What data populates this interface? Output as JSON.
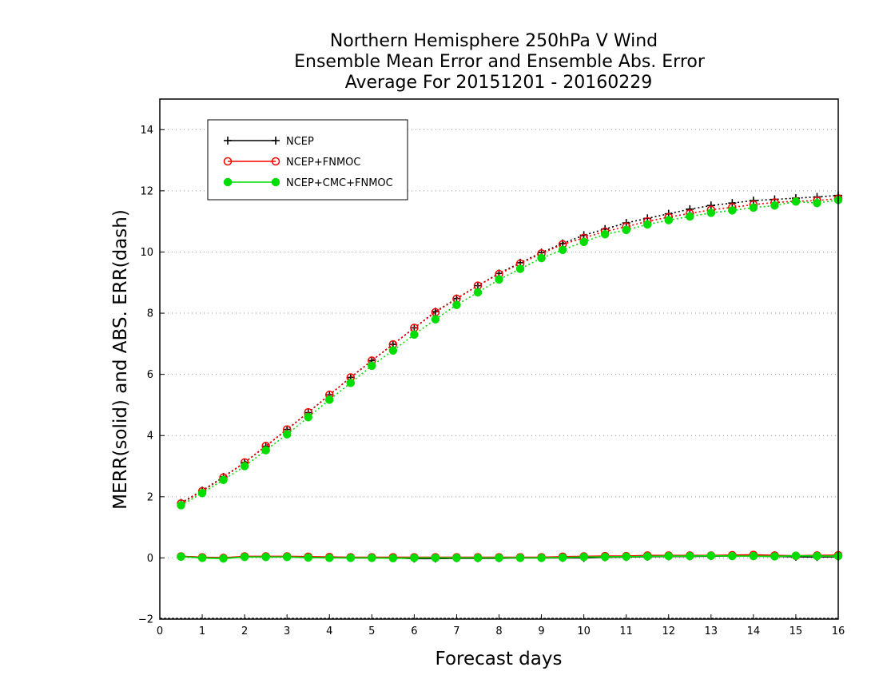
{
  "chart_data": {
    "type": "line",
    "title_lines": [
      "Northern Hemisphere 250hPa V Wind",
      "Ensemble Mean Error and Ensemble Abs. Error",
      "Average For 20151201 - 20160229"
    ],
    "xlabel": "Forecast days",
    "ylabel": "MERR(solid) and ABS. ERR(dash)",
    "xlim": [
      0,
      16
    ],
    "ylim": [
      -2,
      15
    ],
    "xticks": [
      "0",
      "1",
      "2",
      "3",
      "4",
      "5",
      "6",
      "7",
      "8",
      "9",
      "10",
      "11",
      "12",
      "13",
      "14",
      "15",
      "16"
    ],
    "yticks": [
      "−2",
      "0",
      "2",
      "4",
      "6",
      "8",
      "10",
      "12",
      "14"
    ],
    "ytick_values": [
      -2,
      0,
      2,
      4,
      6,
      8,
      10,
      12,
      14
    ],
    "grid": "horizontal dotted",
    "legend_position": "top-left",
    "x": [
      0.5,
      1,
      1.5,
      2,
      2.5,
      3,
      3.5,
      4,
      4.5,
      5,
      5.5,
      6,
      6.5,
      7,
      7.5,
      8,
      8.5,
      9,
      9.5,
      10,
      10.5,
      11,
      11.5,
      12,
      12.5,
      13,
      13.5,
      14,
      14.5,
      15,
      15.5,
      16
    ],
    "series": [
      {
        "name": "NCEP",
        "color": "#000000",
        "marker": "plus",
        "merr": [
          0.05,
          0.02,
          0.0,
          0.04,
          0.03,
          0.04,
          0.03,
          0.01,
          0.0,
          0.0,
          0.0,
          -0.02,
          -0.02,
          -0.01,
          -0.01,
          -0.01,
          0.0,
          0.0,
          0.0,
          0.0,
          0.02,
          0.03,
          0.04,
          0.05,
          0.05,
          0.06,
          0.06,
          0.06,
          0.05,
          0.04,
          0.03,
          0.04
        ],
        "abs_err": [
          1.8,
          2.2,
          2.65,
          3.12,
          3.65,
          4.2,
          4.75,
          5.33,
          5.9,
          6.45,
          6.98,
          7.52,
          8.05,
          8.48,
          8.9,
          9.3,
          9.65,
          9.98,
          10.28,
          10.55,
          10.75,
          10.95,
          11.1,
          11.25,
          11.4,
          11.52,
          11.6,
          11.68,
          11.72,
          11.76,
          11.8,
          11.85
        ]
      },
      {
        "name": "NCEP+FNMOC",
        "color": "#ff0000",
        "marker": "open-circle",
        "merr": [
          0.05,
          0.02,
          0.0,
          0.05,
          0.05,
          0.05,
          0.04,
          0.03,
          0.02,
          0.02,
          0.02,
          0.02,
          0.02,
          0.02,
          0.02,
          0.02,
          0.02,
          0.02,
          0.04,
          0.05,
          0.06,
          0.06,
          0.08,
          0.08,
          0.08,
          0.08,
          0.09,
          0.1,
          0.08,
          0.07,
          0.08,
          0.09
        ],
        "abs_err": [
          1.78,
          2.18,
          2.63,
          3.12,
          3.66,
          4.2,
          4.76,
          5.33,
          5.9,
          6.45,
          6.98,
          7.52,
          8.03,
          8.47,
          8.9,
          9.28,
          9.62,
          9.95,
          10.25,
          10.46,
          10.67,
          10.83,
          11.0,
          11.14,
          11.26,
          11.38,
          11.46,
          11.55,
          11.62,
          11.66,
          11.68,
          11.75
        ]
      },
      {
        "name": "NCEP+CMC+FNMOC",
        "color": "#00dd00",
        "marker": "filled-circle",
        "merr": [
          0.04,
          0.0,
          -0.02,
          0.03,
          0.03,
          0.03,
          0.01,
          0.0,
          0.0,
          0.0,
          -0.01,
          0.0,
          0.0,
          0.0,
          0.0,
          0.0,
          0.0,
          0.0,
          0.01,
          0.03,
          0.03,
          0.04,
          0.05,
          0.06,
          0.06,
          0.07,
          0.06,
          0.06,
          0.05,
          0.07,
          0.06,
          0.06
        ],
        "abs_err": [
          1.72,
          2.12,
          2.55,
          3.0,
          3.52,
          4.04,
          4.6,
          5.17,
          5.72,
          6.28,
          6.78,
          7.3,
          7.8,
          8.27,
          8.68,
          9.1,
          9.45,
          9.8,
          10.07,
          10.33,
          10.58,
          10.72,
          10.9,
          11.04,
          11.16,
          11.28,
          11.36,
          11.45,
          11.52,
          11.65,
          11.6,
          11.7
        ]
      }
    ]
  }
}
